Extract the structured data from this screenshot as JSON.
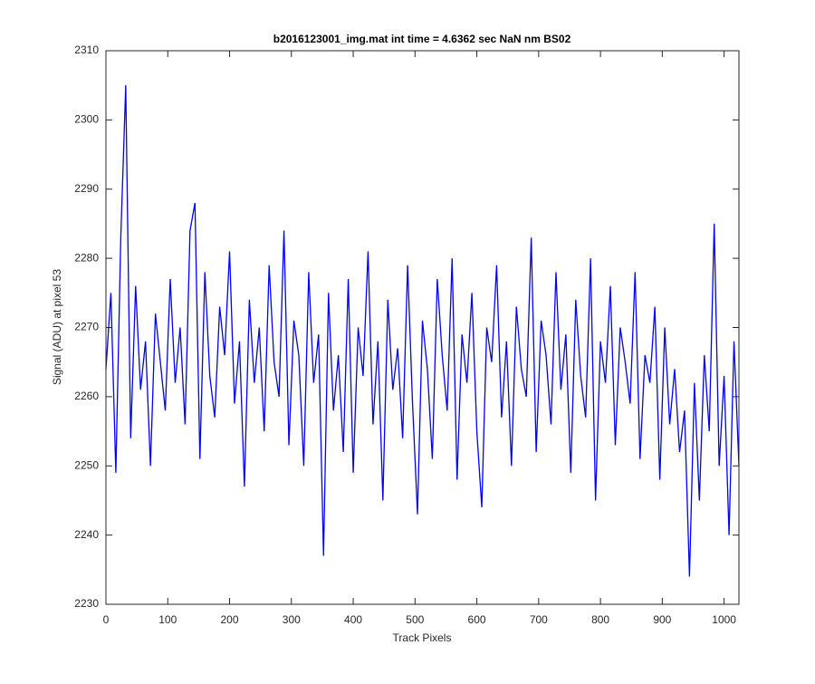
{
  "chart_data": {
    "type": "line",
    "title": "b2016123001_img.mat int time = 4.6362 sec  NaN nm BS02",
    "x_label": "Track Pixels",
    "y_label": "Signal (ADU) at pixel 53",
    "x": [
      0,
      8,
      16,
      24,
      32,
      40,
      48,
      56,
      64,
      72,
      80,
      88,
      96,
      104,
      112,
      120,
      128,
      136,
      144,
      152,
      160,
      168,
      176,
      184,
      192,
      200,
      208,
      216,
      224,
      232,
      240,
      248,
      256,
      264,
      272,
      280,
      288,
      296,
      304,
      312,
      320,
      328,
      336,
      344,
      352,
      360,
      368,
      376,
      384,
      392,
      400,
      408,
      416,
      424,
      432,
      440,
      448,
      456,
      464,
      472,
      480,
      488,
      496,
      504,
      512,
      520,
      528,
      536,
      544,
      552,
      560,
      568,
      576,
      584,
      592,
      600,
      608,
      616,
      624,
      632,
      640,
      648,
      656,
      664,
      672,
      680,
      688,
      696,
      704,
      712,
      720,
      728,
      736,
      744,
      752,
      760,
      768,
      776,
      784,
      792,
      800,
      808,
      816,
      824,
      832,
      840,
      848,
      856,
      864,
      872,
      880,
      888,
      896,
      904,
      912,
      920,
      928,
      936,
      944,
      952,
      960,
      968,
      976,
      984,
      992,
      1000,
      1008,
      1016,
      1024
    ],
    "series": [
      {
        "name": "signal",
        "color": "#0000ff",
        "values": [
          2264,
          2275,
          2249,
          2283,
          2305,
          2254,
          2276,
          2261,
          2268,
          2250,
          2272,
          2265,
          2258,
          2277,
          2262,
          2270,
          2256,
          2284,
          2288,
          2251,
          2278,
          2263,
          2257,
          2273,
          2266,
          2281,
          2259,
          2268,
          2247,
          2274,
          2262,
          2270,
          2255,
          2279,
          2265,
          2260,
          2284,
          2253,
          2271,
          2266,
          2250,
          2278,
          2262,
          2269,
          2237,
          2275,
          2258,
          2266,
          2252,
          2277,
          2249,
          2270,
          2263,
          2281,
          2256,
          2268,
          2245,
          2274,
          2261,
          2267,
          2254,
          2279,
          2259,
          2243,
          2271,
          2264,
          2251,
          2277,
          2266,
          2258,
          2280,
          2248,
          2269,
          2262,
          2275,
          2255,
          2244,
          2270,
          2265,
          2279,
          2257,
          2268,
          2250,
          2273,
          2264,
          2260,
          2283,
          2252,
          2271,
          2266,
          2256,
          2278,
          2261,
          2269,
          2249,
          2274,
          2263,
          2257,
          2280,
          2245,
          2268,
          2262,
          2276,
          2253,
          2270,
          2265,
          2259,
          2278,
          2251,
          2266,
          2262,
          2273,
          2248,
          2270,
          2256,
          2264,
          2252,
          2258,
          2234,
          2262,
          2245,
          2266,
          2255,
          2285,
          2250,
          2263,
          2240,
          2268,
          2250
        ]
      }
    ],
    "xlim": [
      0,
      1024
    ],
    "xticks": [
      0,
      100,
      200,
      300,
      400,
      500,
      600,
      700,
      800,
      900,
      1000
    ],
    "ylim": [
      2230,
      2310
    ],
    "yticks": [
      2230,
      2240,
      2250,
      2260,
      2270,
      2280,
      2290,
      2300,
      2310
    ]
  }
}
